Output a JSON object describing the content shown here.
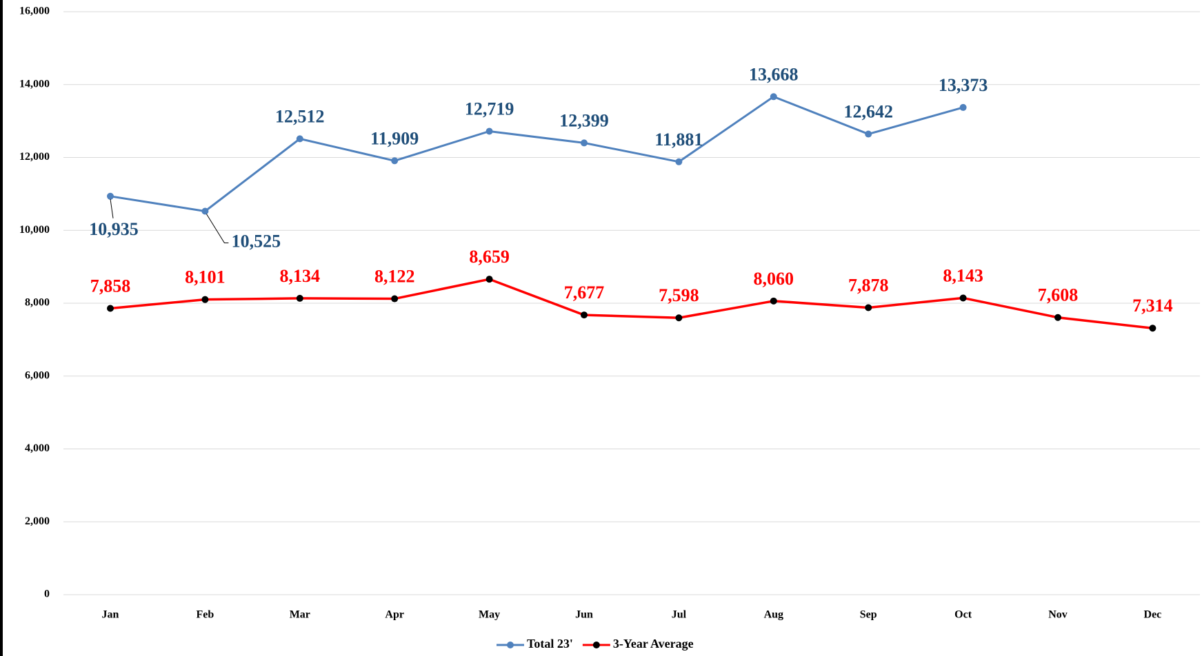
{
  "chart_data": {
    "type": "line",
    "categories": [
      "Jan",
      "Feb",
      "Mar",
      "Apr",
      "May",
      "Jun",
      "Jul",
      "Aug",
      "Sep",
      "Oct",
      "Nov",
      "Dec"
    ],
    "series": [
      {
        "name": "Total 23'",
        "color": "#4f81bd",
        "marker_color": "#4f81bd",
        "label_color": "#1f4e79",
        "values": [
          10935,
          10525,
          12512,
          11909,
          12719,
          12399,
          11881,
          13668,
          12642,
          13373,
          null,
          null
        ],
        "value_labels": [
          "10,935",
          "10,525",
          "12,512",
          "11,909",
          "12,719",
          "12,399",
          "11,881",
          "13,668",
          "12,642",
          "13,373",
          null,
          null
        ]
      },
      {
        "name": "3-Year Average",
        "color": "#ff0000",
        "marker_color": "#000000",
        "label_color": "#ff0000",
        "values": [
          7858,
          8101,
          8134,
          8122,
          8659,
          7677,
          7598,
          8060,
          7878,
          8143,
          7608,
          7314
        ],
        "value_labels": [
          "7,858",
          "8,101",
          "8,134",
          "8,122",
          "8,659",
          "7,677",
          "7,598",
          "8,060",
          "7,878",
          "8,143",
          "7,608",
          "7,314"
        ]
      }
    ],
    "ylim": [
      0,
      16000
    ],
    "yticks": [
      0,
      {
        "value": 2000,
        "label": "2,000"
      },
      {
        "value": 4000,
        "label": "4,000"
      },
      {
        "value": 6000,
        "label": "6,000"
      },
      {
        "value": 8000,
        "label": "8,000"
      },
      {
        "value": 10000,
        "label": "10,000"
      },
      {
        "value": 12000,
        "label": "12,000"
      },
      {
        "value": 14000,
        "label": "14,000"
      },
      {
        "value": 16000,
        "label": "16,000"
      }
    ],
    "grid": true,
    "legend": "bottom"
  }
}
